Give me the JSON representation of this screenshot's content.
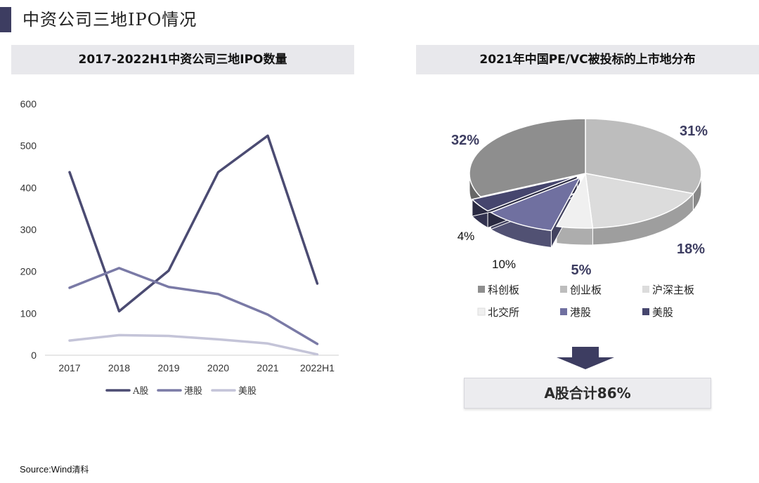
{
  "page": {
    "title": "中资公司三地IPO情况",
    "accent_color": "#3d3d61"
  },
  "left_panel": {
    "header": "2017-2022H1中资公司三地IPO数量"
  },
  "right_panel": {
    "header": "2021年中国PE/VC被投标的上市地分布"
  },
  "summary": {
    "text": "A股合计86%"
  },
  "source": {
    "label": "Source:Wind",
    "extra": "清科"
  },
  "chart_data": [
    {
      "type": "line",
      "title": "2017-2022H1中资公司三地IPO数量",
      "categories": [
        "2017",
        "2018",
        "2019",
        "2020",
        "2021",
        "2022H1"
      ],
      "ylim": [
        0,
        600
      ],
      "yticks": [
        "0",
        "100",
        "200",
        "300",
        "400",
        "500",
        "600"
      ],
      "grid": false,
      "legend_position": "bottom",
      "series": [
        {
          "name": "A股",
          "values": [
            437,
            105,
            202,
            437,
            524,
            171
          ],
          "color": "#4b4b72"
        },
        {
          "name": "港股",
          "values": [
            161,
            208,
            163,
            146,
            97,
            27
          ],
          "color": "#7a7aa6"
        },
        {
          "name": "美股",
          "values": [
            35,
            48,
            46,
            38,
            28,
            2
          ],
          "color": "#c4c4d8"
        }
      ]
    },
    {
      "type": "pie",
      "title": "2021年中国PE/VC被投标的上市地分布",
      "style": "3d",
      "legend_position": "bottom",
      "slices": [
        {
          "name": "科创板",
          "value": 32,
          "label": "32%",
          "color": "#8e8e8e"
        },
        {
          "name": "创业板",
          "value": 31,
          "label": "31%",
          "color": "#bdbdbd"
        },
        {
          "name": "沪深主板",
          "value": 18,
          "label": "18%",
          "color": "#dcdcdc"
        },
        {
          "name": "北交所",
          "value": 5,
          "label": "5%",
          "color": "#f0f0f0"
        },
        {
          "name": "港股",
          "value": 10,
          "label": "10%",
          "color": "#7070a0"
        },
        {
          "name": "美股",
          "value": 4,
          "label": "4%",
          "color": "#46466e"
        }
      ]
    }
  ]
}
